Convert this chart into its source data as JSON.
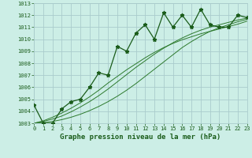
{
  "title": "Graphe pression niveau de la mer (hPa)",
  "bg_color": "#cceee6",
  "grid_color": "#aacccc",
  "line_color": "#1a5c1a",
  "trend_color": "#2d7a2d",
  "x_data": [
    0,
    1,
    2,
    3,
    4,
    5,
    6,
    7,
    8,
    9,
    10,
    11,
    12,
    13,
    14,
    15,
    16,
    17,
    18,
    19,
    20,
    21,
    22,
    23
  ],
  "y_main": [
    1004.5,
    1003.0,
    1003.0,
    1004.2,
    1004.8,
    1005.0,
    1006.0,
    1007.2,
    1007.0,
    1009.4,
    1009.0,
    1010.5,
    1011.2,
    1010.0,
    1012.2,
    1011.0,
    1012.0,
    1011.0,
    1012.5,
    1011.2,
    1011.0,
    1011.0,
    1012.0,
    1011.8
  ],
  "y_trend1": [
    1003.0,
    1003.05,
    1003.15,
    1003.3,
    1003.5,
    1003.75,
    1004.05,
    1004.4,
    1004.8,
    1005.25,
    1005.75,
    1006.3,
    1006.9,
    1007.5,
    1008.1,
    1008.7,
    1009.3,
    1009.8,
    1010.25,
    1010.65,
    1010.95,
    1011.2,
    1011.45,
    1011.65
  ],
  "y_trend2": [
    1003.0,
    1003.15,
    1003.35,
    1003.6,
    1003.95,
    1004.35,
    1004.8,
    1005.3,
    1005.85,
    1006.45,
    1007.05,
    1007.65,
    1008.2,
    1008.75,
    1009.25,
    1009.7,
    1010.1,
    1010.45,
    1010.75,
    1011.0,
    1011.2,
    1011.4,
    1011.6,
    1011.75
  ],
  "y_trend3": [
    1003.0,
    1003.2,
    1003.5,
    1003.85,
    1004.25,
    1004.7,
    1005.2,
    1005.75,
    1006.35,
    1006.9,
    1007.45,
    1007.95,
    1008.45,
    1008.9,
    1009.3,
    1009.65,
    1009.95,
    1010.2,
    1010.45,
    1010.65,
    1010.85,
    1011.05,
    1011.25,
    1011.5
  ],
  "ylim": [
    1003,
    1013
  ],
  "xlim": [
    0,
    23
  ],
  "yticks": [
    1003,
    1004,
    1005,
    1006,
    1007,
    1008,
    1009,
    1010,
    1011,
    1012,
    1013
  ],
  "xticks": [
    0,
    1,
    2,
    3,
    4,
    5,
    6,
    7,
    8,
    9,
    10,
    11,
    12,
    13,
    14,
    15,
    16,
    17,
    18,
    19,
    20,
    21,
    22,
    23
  ],
  "title_fontsize": 6.5,
  "tick_fontsize": 5.0
}
